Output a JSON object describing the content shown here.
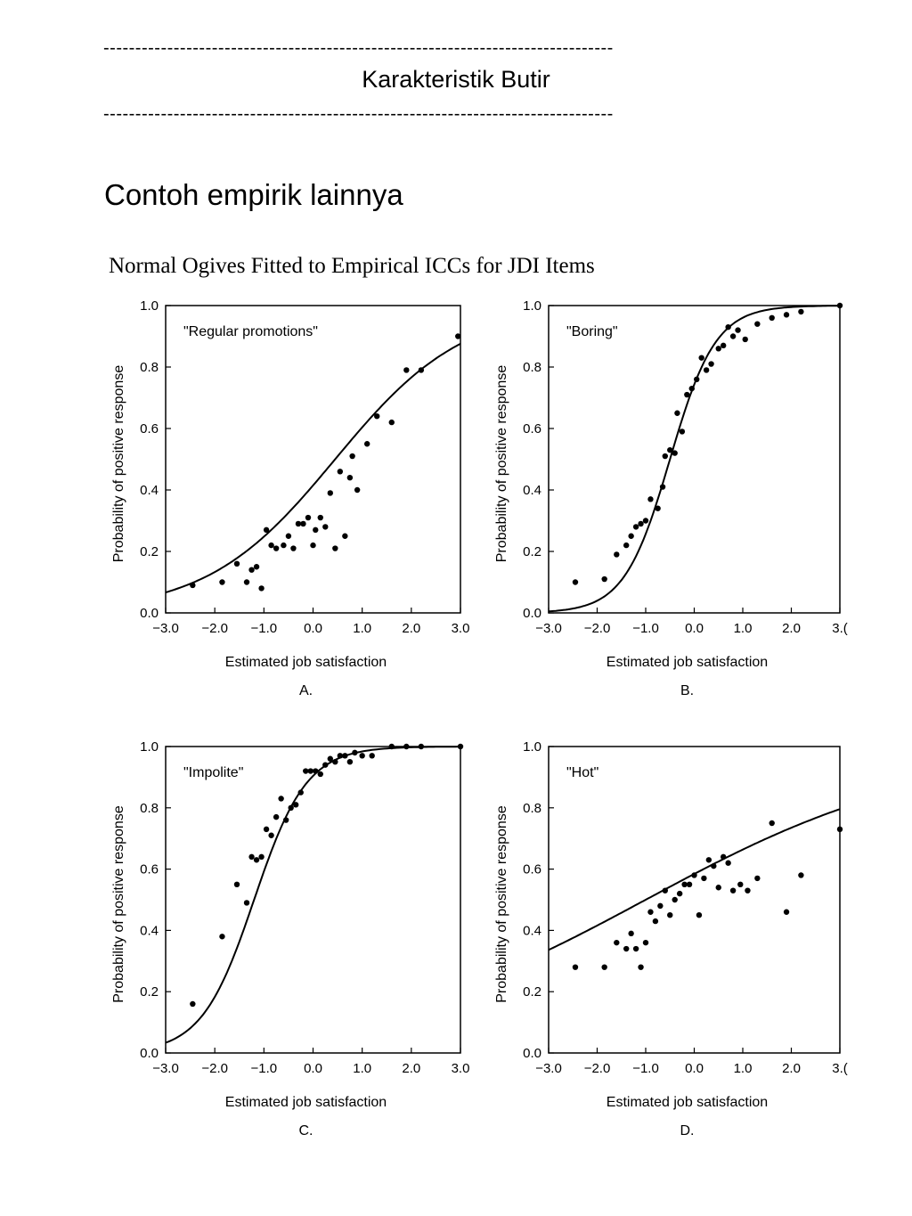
{
  "header": {
    "rule_top": "--------------------------------------------------------------------------------",
    "title": "Karakteristik Butir",
    "rule_bottom": "--------------------------------------------------------------------------------"
  },
  "slide": {
    "title": "Contoh empirik lainnya"
  },
  "figure": {
    "title": "Normal Ogives Fitted to Empirical ICCs for JDI Items"
  },
  "chart_data": [
    {
      "type": "scatter",
      "panel": "A.",
      "annotation": "\"Regular promotions\"",
      "xlabel": "Estimated job satisfaction",
      "ylabel": "Probability of positive response",
      "xlim": [
        -3.0,
        3.0
      ],
      "ylim": [
        0.0,
        1.0
      ],
      "xticks": [
        "−3.0",
        "−2.0",
        "−1.0",
        "0.0",
        "1.0",
        "2.0",
        "3.0"
      ],
      "yticks": [
        "0.0",
        "0.2",
        "0.4",
        "0.6",
        "0.8",
        "1.0"
      ],
      "curve": {
        "a": 0.45,
        "b": 0.45
      },
      "points": [
        [
          -2.45,
          0.09
        ],
        [
          -1.85,
          0.1
        ],
        [
          -1.55,
          0.16
        ],
        [
          -1.35,
          0.1
        ],
        [
          -1.25,
          0.14
        ],
        [
          -1.15,
          0.15
        ],
        [
          -1.05,
          0.08
        ],
        [
          -0.95,
          0.27
        ],
        [
          -0.85,
          0.22
        ],
        [
          -0.75,
          0.21
        ],
        [
          -0.6,
          0.22
        ],
        [
          -0.5,
          0.25
        ],
        [
          -0.4,
          0.21
        ],
        [
          -0.3,
          0.29
        ],
        [
          -0.2,
          0.29
        ],
        [
          -0.1,
          0.31
        ],
        [
          0.0,
          0.22
        ],
        [
          0.05,
          0.27
        ],
        [
          0.15,
          0.31
        ],
        [
          0.25,
          0.28
        ],
        [
          0.35,
          0.39
        ],
        [
          0.45,
          0.21
        ],
        [
          0.55,
          0.46
        ],
        [
          0.65,
          0.25
        ],
        [
          0.75,
          0.44
        ],
        [
          0.8,
          0.51
        ],
        [
          0.9,
          0.4
        ],
        [
          1.1,
          0.55
        ],
        [
          1.3,
          0.64
        ],
        [
          1.6,
          0.62
        ],
        [
          1.9,
          0.79
        ],
        [
          2.2,
          0.79
        ],
        [
          2.95,
          0.9
        ]
      ]
    },
    {
      "type": "scatter",
      "panel": "B.",
      "annotation": "\"Boring\"",
      "xlabel": "Estimated job satisfaction",
      "ylabel": "Probability of positive response",
      "xlim": [
        -3.0,
        3.0
      ],
      "ylim": [
        0.0,
        1.0
      ],
      "xticks": [
        "−3.0",
        "−2.0",
        "−1.0",
        "0.0",
        "1.0",
        "2.0",
        "3.("
      ],
      "yticks": [
        "0.0",
        "0.2",
        "0.4",
        "0.6",
        "0.8",
        "1.0"
      ],
      "curve": {
        "a": 1.25,
        "b": -0.5
      },
      "points": [
        [
          -2.45,
          0.1
        ],
        [
          -1.85,
          0.11
        ],
        [
          -1.6,
          0.19
        ],
        [
          -1.4,
          0.22
        ],
        [
          -1.3,
          0.25
        ],
        [
          -1.2,
          0.28
        ],
        [
          -1.1,
          0.29
        ],
        [
          -1.0,
          0.3
        ],
        [
          -0.9,
          0.37
        ],
        [
          -0.75,
          0.34
        ],
        [
          -0.65,
          0.41
        ],
        [
          -0.6,
          0.51
        ],
        [
          -0.5,
          0.53
        ],
        [
          -0.4,
          0.52
        ],
        [
          -0.35,
          0.65
        ],
        [
          -0.25,
          0.59
        ],
        [
          -0.15,
          0.71
        ],
        [
          -0.05,
          0.73
        ],
        [
          0.05,
          0.76
        ],
        [
          0.15,
          0.83
        ],
        [
          0.25,
          0.79
        ],
        [
          0.35,
          0.81
        ],
        [
          0.5,
          0.86
        ],
        [
          0.6,
          0.87
        ],
        [
          0.7,
          0.93
        ],
        [
          0.8,
          0.9
        ],
        [
          0.9,
          0.92
        ],
        [
          1.05,
          0.89
        ],
        [
          1.3,
          0.94
        ],
        [
          1.6,
          0.96
        ],
        [
          1.9,
          0.97
        ],
        [
          2.2,
          0.98
        ],
        [
          3.0,
          1.0
        ]
      ]
    },
    {
      "type": "scatter",
      "panel": "C.",
      "annotation": "\"Impolite\"",
      "xlabel": "Estimated job satisfaction",
      "ylabel": "Probability of positive response",
      "xlim": [
        -3.0,
        3.0
      ],
      "ylim": [
        0.0,
        1.0
      ],
      "xticks": [
        "−3.0",
        "−2.0",
        "−1.0",
        "0.0",
        "1.0",
        "2.0",
        "3.0"
      ],
      "yticks": [
        "0.0",
        "0.2",
        "0.4",
        "0.6",
        "0.8",
        "1.0"
      ],
      "curve": {
        "a": 1.1,
        "b": -1.2
      },
      "points": [
        [
          -2.45,
          0.16
        ],
        [
          -1.85,
          0.38
        ],
        [
          -1.55,
          0.55
        ],
        [
          -1.35,
          0.49
        ],
        [
          -1.25,
          0.64
        ],
        [
          -1.15,
          0.63
        ],
        [
          -1.05,
          0.64
        ],
        [
          -0.95,
          0.73
        ],
        [
          -0.85,
          0.71
        ],
        [
          -0.75,
          0.77
        ],
        [
          -0.65,
          0.83
        ],
        [
          -0.55,
          0.76
        ],
        [
          -0.45,
          0.8
        ],
        [
          -0.35,
          0.81
        ],
        [
          -0.25,
          0.85
        ],
        [
          -0.15,
          0.92
        ],
        [
          -0.05,
          0.92
        ],
        [
          0.05,
          0.92
        ],
        [
          0.15,
          0.91
        ],
        [
          0.25,
          0.94
        ],
        [
          0.35,
          0.96
        ],
        [
          0.45,
          0.95
        ],
        [
          0.55,
          0.97
        ],
        [
          0.65,
          0.97
        ],
        [
          0.75,
          0.95
        ],
        [
          0.85,
          0.98
        ],
        [
          1.0,
          0.97
        ],
        [
          1.2,
          0.97
        ],
        [
          1.6,
          1.0
        ],
        [
          1.9,
          1.0
        ],
        [
          2.2,
          1.0
        ],
        [
          3.0,
          1.0
        ]
      ]
    },
    {
      "type": "scatter",
      "panel": "D.",
      "annotation": "\"Hot\"",
      "xlabel": "Estimated job satisfaction",
      "ylabel": "Probability of positive response",
      "xlim": [
        -3.0,
        3.0
      ],
      "ylim": [
        0.0,
        1.0
      ],
      "xticks": [
        "−3.0",
        "−2.0",
        "−1.0",
        "0.0",
        "1.0",
        "2.0",
        "3.("
      ],
      "yticks": [
        "0.0",
        "0.2",
        "0.4",
        "0.6",
        "0.8",
        "1.0"
      ],
      "curve": {
        "a": 0.2,
        "b": -1.0
      },
      "points": [
        [
          -2.45,
          0.28
        ],
        [
          -1.85,
          0.28
        ],
        [
          -1.6,
          0.36
        ],
        [
          -1.4,
          0.34
        ],
        [
          -1.3,
          0.39
        ],
        [
          -1.2,
          0.34
        ],
        [
          -1.1,
          0.28
        ],
        [
          -1.0,
          0.36
        ],
        [
          -0.9,
          0.46
        ],
        [
          -0.8,
          0.43
        ],
        [
          -0.7,
          0.48
        ],
        [
          -0.6,
          0.53
        ],
        [
          -0.5,
          0.45
        ],
        [
          -0.4,
          0.5
        ],
        [
          -0.3,
          0.52
        ],
        [
          -0.2,
          0.55
        ],
        [
          -0.1,
          0.55
        ],
        [
          0.0,
          0.58
        ],
        [
          0.1,
          0.45
        ],
        [
          0.2,
          0.57
        ],
        [
          0.3,
          0.63
        ],
        [
          0.4,
          0.61
        ],
        [
          0.5,
          0.54
        ],
        [
          0.6,
          0.64
        ],
        [
          0.7,
          0.62
        ],
        [
          0.8,
          0.53
        ],
        [
          0.95,
          0.55
        ],
        [
          1.1,
          0.53
        ],
        [
          1.3,
          0.57
        ],
        [
          1.6,
          0.75
        ],
        [
          1.9,
          0.46
        ],
        [
          2.2,
          0.58
        ],
        [
          3.0,
          0.73
        ]
      ]
    }
  ]
}
